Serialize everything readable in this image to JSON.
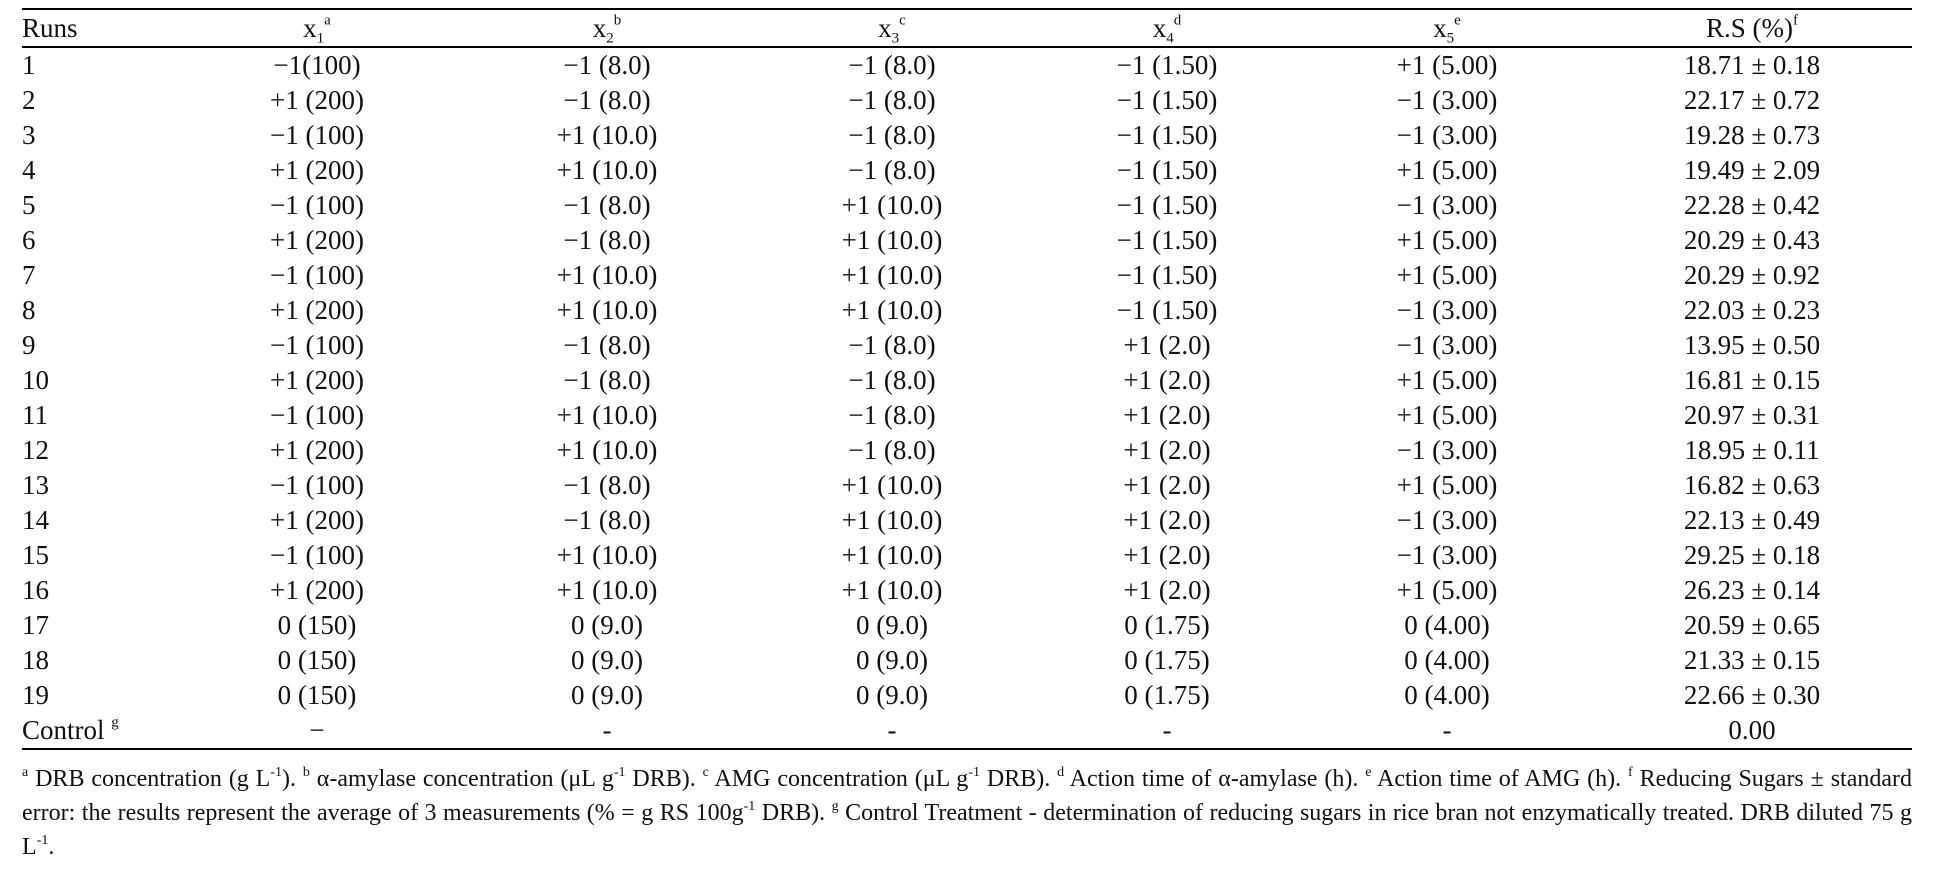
{
  "table": {
    "headers": [
      {
        "base": "Runs"
      },
      {
        "base": "x",
        "sub": "1",
        "sup": "a"
      },
      {
        "base": "x",
        "sub": "2",
        "sup": "b"
      },
      {
        "base": "x",
        "sub": "3",
        "sup": "c"
      },
      {
        "base": "x",
        "sub": "4",
        "sup": "d"
      },
      {
        "base": "x",
        "sub": "5",
        "sup": "e"
      },
      {
        "base": "R.S (%)",
        "sup": "f"
      }
    ],
    "rows": [
      {
        "run": "1",
        "cells": [
          "−1(100)",
          "−1 (8.0)",
          "−1 (8.0)",
          "−1 (1.50)",
          "+1 (5.00)",
          "18.71 ± 0.18"
        ]
      },
      {
        "run": "2",
        "cells": [
          "+1 (200)",
          "−1 (8.0)",
          "−1 (8.0)",
          "−1 (1.50)",
          "−1 (3.00)",
          "22.17 ± 0.72"
        ]
      },
      {
        "run": "3",
        "cells": [
          "−1 (100)",
          "+1 (10.0)",
          "−1 (8.0)",
          "−1 (1.50)",
          "−1 (3.00)",
          "19.28 ± 0.73"
        ]
      },
      {
        "run": "4",
        "cells": [
          "+1 (200)",
          "+1 (10.0)",
          "−1 (8.0)",
          "−1 (1.50)",
          "+1 (5.00)",
          "19.49 ± 2.09"
        ]
      },
      {
        "run": "5",
        "cells": [
          "−1 (100)",
          "−1 (8.0)",
          "+1 (10.0)",
          "−1 (1.50)",
          "−1 (3.00)",
          "22.28 ± 0.42"
        ]
      },
      {
        "run": "6",
        "cells": [
          "+1 (200)",
          "−1 (8.0)",
          "+1 (10.0)",
          "−1 (1.50)",
          "+1 (5.00)",
          "20.29 ± 0.43"
        ]
      },
      {
        "run": "7",
        "cells": [
          "−1 (100)",
          "+1 (10.0)",
          "+1 (10.0)",
          "−1 (1.50)",
          "+1 (5.00)",
          "20.29 ± 0.92"
        ]
      },
      {
        "run": "8",
        "cells": [
          "+1 (200)",
          "+1 (10.0)",
          "+1 (10.0)",
          "−1 (1.50)",
          "−1 (3.00)",
          "22.03 ± 0.23"
        ]
      },
      {
        "run": "9",
        "cells": [
          "−1 (100)",
          "−1 (8.0)",
          "−1 (8.0)",
          "+1 (2.0)",
          "−1 (3.00)",
          "13.95 ± 0.50"
        ]
      },
      {
        "run": "10",
        "cells": [
          "+1 (200)",
          "−1 (8.0)",
          "−1 (8.0)",
          "+1 (2.0)",
          "+1 (5.00)",
          "16.81 ± 0.15"
        ]
      },
      {
        "run": "11",
        "cells": [
          "−1 (100)",
          "+1 (10.0)",
          "−1 (8.0)",
          "+1 (2.0)",
          "+1 (5.00)",
          "20.97 ± 0.31"
        ]
      },
      {
        "run": "12",
        "cells": [
          "+1 (200)",
          "+1 (10.0)",
          "−1 (8.0)",
          "+1 (2.0)",
          "−1 (3.00)",
          "18.95 ± 0.11"
        ]
      },
      {
        "run": "13",
        "cells": [
          "−1 (100)",
          "−1 (8.0)",
          "+1 (10.0)",
          "+1 (2.0)",
          "+1 (5.00)",
          "16.82 ± 0.63"
        ]
      },
      {
        "run": "14",
        "cells": [
          "+1 (200)",
          "−1 (8.0)",
          "+1 (10.0)",
          "+1 (2.0)",
          "−1 (3.00)",
          "22.13 ± 0.49"
        ]
      },
      {
        "run": "15",
        "cells": [
          "−1 (100)",
          "+1 (10.0)",
          "+1 (10.0)",
          "+1 (2.0)",
          "−1 (3.00)",
          "29.25 ± 0.18"
        ]
      },
      {
        "run": "16",
        "cells": [
          "+1 (200)",
          "+1 (10.0)",
          "+1 (10.0)",
          "+1 (2.0)",
          "+1 (5.00)",
          "26.23 ± 0.14"
        ]
      },
      {
        "run": "17",
        "cells": [
          "0 (150)",
          "0 (9.0)",
          "0 (9.0)",
          "0 (1.75)",
          "0 (4.00)",
          "20.59 ± 0.65"
        ]
      },
      {
        "run": "18",
        "cells": [
          "0 (150)",
          "0 (9.0)",
          "0 (9.0)",
          "0 (1.75)",
          "0 (4.00)",
          "21.33 ± 0.15"
        ]
      },
      {
        "run": "19",
        "cells": [
          "0 (150)",
          "0 (9.0)",
          "0 (9.0)",
          "0 (1.75)",
          "0 (4.00)",
          "22.66 ± 0.30"
        ]
      },
      {
        "run": "Control",
        "run_sup": "g",
        "cells": [
          "−",
          "-",
          "-",
          "-",
          "-",
          "0.00"
        ]
      }
    ]
  },
  "footnotes": {
    "a_mark": "a",
    "a_text": " DRB concentration (g L",
    "a_exp": "-1",
    "a_end": "). ",
    "b_mark": "b",
    "b_text": " α-amylase concentration (μL g",
    "b_exp": "-1",
    "b_end": " DRB). ",
    "c_mark": "c",
    "c_text": " AMG concentration (μL g",
    "c_exp": "-1",
    "c_end": " DRB). ",
    "d_mark": "d",
    "d_text": " Action time of α-amylase (h). ",
    "e_mark": "e",
    "e_text": " Action time of AMG (h). ",
    "f_mark": "f",
    "f_text": " Reducing Sugars ± standard error: the results represent the average of 3 measurements (% = g RS 100g",
    "f_exp": "-1",
    "f_end": " DRB). ",
    "g_mark": "g",
    "g_text": " Control Treatment - determination of reducing sugars in rice bran not enzymatically treated. DRB diluted 75 g L",
    "g_exp": "-1",
    "g_end": "."
  }
}
